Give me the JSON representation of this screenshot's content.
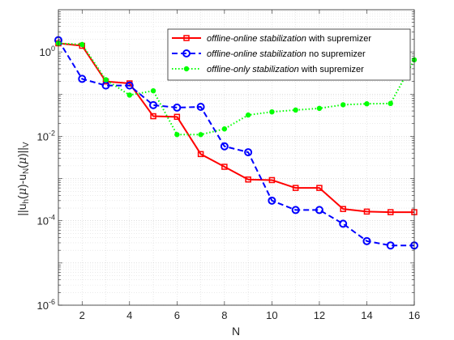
{
  "chart_data": {
    "type": "line",
    "xlabel": "N",
    "ylabel": "||u_h(μ)-u_N(μ)||_V",
    "ylabel_parts": {
      "base1": "||u",
      "sub1": "h",
      "mid1": "(",
      "mu1": "μ",
      "mid2": ")-u",
      "sub2": "N",
      "mid3": "(",
      "mu2": "μ",
      "mid4": ")||",
      "sub3": "V"
    },
    "xlim": [
      1,
      16
    ],
    "ylim": [
      1e-06,
      10
    ],
    "yscale": "log",
    "x_ticks": [
      "2",
      "4",
      "6",
      "8",
      "10",
      "12",
      "14",
      "16"
    ],
    "y_ticks": [
      {
        "base": "10",
        "exp": "0"
      },
      {
        "base": "10",
        "exp": "-2"
      },
      {
        "base": "10",
        "exp": "-4"
      },
      {
        "base": "10",
        "exp": "-6"
      }
    ],
    "grid": true,
    "minor_grid": true,
    "legend_position": "top-right",
    "series": [
      {
        "name_italic": "offline-online stabilization",
        "name_rest": " with supremizer",
        "color": "#ff0000",
        "line_style": "solid",
        "marker": "square",
        "x": [
          1,
          2,
          3,
          4,
          5,
          6,
          7,
          8,
          9,
          10,
          11,
          12,
          13,
          14,
          15,
          16
        ],
        "y": [
          1.6,
          1.4,
          0.2,
          0.18,
          0.03,
          0.029,
          0.0038,
          0.0019,
          0.00095,
          0.00092,
          0.0006,
          0.0006,
          0.00019,
          0.000165,
          0.00016,
          0.00016
        ]
      },
      {
        "name_italic": "offline-online stabilization",
        "name_rest": " no supremizer",
        "color": "#0000ff",
        "line_style": "dashed",
        "marker": "circle",
        "x": [
          1,
          2,
          3,
          4,
          5,
          6,
          7,
          8,
          9,
          10,
          11,
          12,
          13,
          14,
          15,
          16
        ],
        "y": [
          1.9,
          0.23,
          0.16,
          0.16,
          0.055,
          0.048,
          0.05,
          0.0058,
          0.0042,
          0.0003,
          0.00018,
          0.00018,
          8.5e-05,
          3.3e-05,
          2.6e-05,
          2.6e-05
        ]
      },
      {
        "name_italic": "offline-only stabilization",
        "name_rest": " with supremizer",
        "color": "#00ff00",
        "line_style": "dotted",
        "marker": "dot",
        "x": [
          1,
          2,
          3,
          4,
          5,
          6,
          7,
          8,
          9,
          10,
          11,
          12,
          13,
          14,
          15,
          16
        ],
        "y": [
          1.6,
          1.5,
          0.22,
          0.095,
          0.12,
          0.011,
          0.011,
          0.015,
          0.032,
          0.038,
          0.042,
          0.046,
          0.056,
          0.059,
          0.06,
          0.65
        ]
      }
    ]
  }
}
